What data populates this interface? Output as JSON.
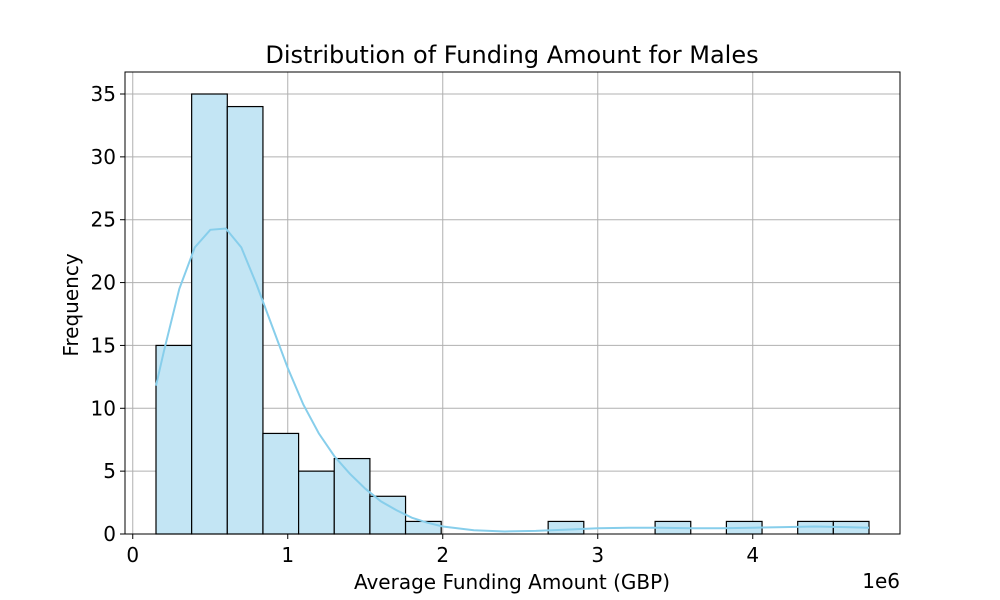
{
  "chart_data": {
    "type": "bar",
    "title": "Distribution of Funding Amount for Males",
    "xlabel": "Average Funding Amount (GBP)",
    "ylabel": "Frequency",
    "x_offset_label": "1e6",
    "xlim": [
      -0.05,
      4.95
    ],
    "ylim": [
      0,
      36.75
    ],
    "xticks": [
      0,
      1,
      2,
      3,
      4
    ],
    "yticks": [
      0,
      5,
      10,
      15,
      20,
      25,
      30,
      35
    ],
    "grid": true,
    "bins": [
      {
        "start": 0.15,
        "end": 0.38,
        "count": 15
      },
      {
        "start": 0.38,
        "end": 0.61,
        "count": 35
      },
      {
        "start": 0.61,
        "end": 0.84,
        "count": 34
      },
      {
        "start": 0.84,
        "end": 1.07,
        "count": 8
      },
      {
        "start": 1.07,
        "end": 1.3,
        "count": 5
      },
      {
        "start": 1.3,
        "end": 1.53,
        "count": 6
      },
      {
        "start": 1.53,
        "end": 1.76,
        "count": 3
      },
      {
        "start": 1.76,
        "end": 1.99,
        "count": 1
      },
      {
        "start": 1.99,
        "end": 2.22,
        "count": 0
      },
      {
        "start": 2.22,
        "end": 2.45,
        "count": 0
      },
      {
        "start": 2.45,
        "end": 2.68,
        "count": 0
      },
      {
        "start": 2.68,
        "end": 2.91,
        "count": 1
      },
      {
        "start": 2.91,
        "end": 3.14,
        "count": 0
      },
      {
        "start": 3.14,
        "end": 3.37,
        "count": 0
      },
      {
        "start": 3.37,
        "end": 3.6,
        "count": 1
      },
      {
        "start": 3.6,
        "end": 3.83,
        "count": 0
      },
      {
        "start": 3.83,
        "end": 4.06,
        "count": 1
      },
      {
        "start": 4.06,
        "end": 4.29,
        "count": 0
      },
      {
        "start": 4.29,
        "end": 4.52,
        "count": 1
      },
      {
        "start": 4.52,
        "end": 4.75,
        "count": 1
      }
    ],
    "kde": {
      "x": [
        0.15,
        0.2,
        0.3,
        0.4,
        0.5,
        0.6,
        0.7,
        0.8,
        0.9,
        1.0,
        1.1,
        1.2,
        1.3,
        1.4,
        1.5,
        1.6,
        1.7,
        1.8,
        1.9,
        2.0,
        2.2,
        2.4,
        2.6,
        2.8,
        3.0,
        3.2,
        3.4,
        3.6,
        3.8,
        4.0,
        4.2,
        4.4,
        4.6,
        4.75
      ],
      "y": [
        11.8,
        14.5,
        19.5,
        22.8,
        24.2,
        24.3,
        22.8,
        19.8,
        16.5,
        13.2,
        10.3,
        8.0,
        6.2,
        4.8,
        3.6,
        2.6,
        1.9,
        1.3,
        0.9,
        0.6,
        0.3,
        0.2,
        0.25,
        0.35,
        0.45,
        0.5,
        0.5,
        0.45,
        0.45,
        0.5,
        0.55,
        0.6,
        0.55,
        0.5
      ]
    },
    "colors": {
      "bar_fill": "#c3e5f4",
      "bar_edge": "#000000",
      "kde": "#87ceeb"
    }
  }
}
